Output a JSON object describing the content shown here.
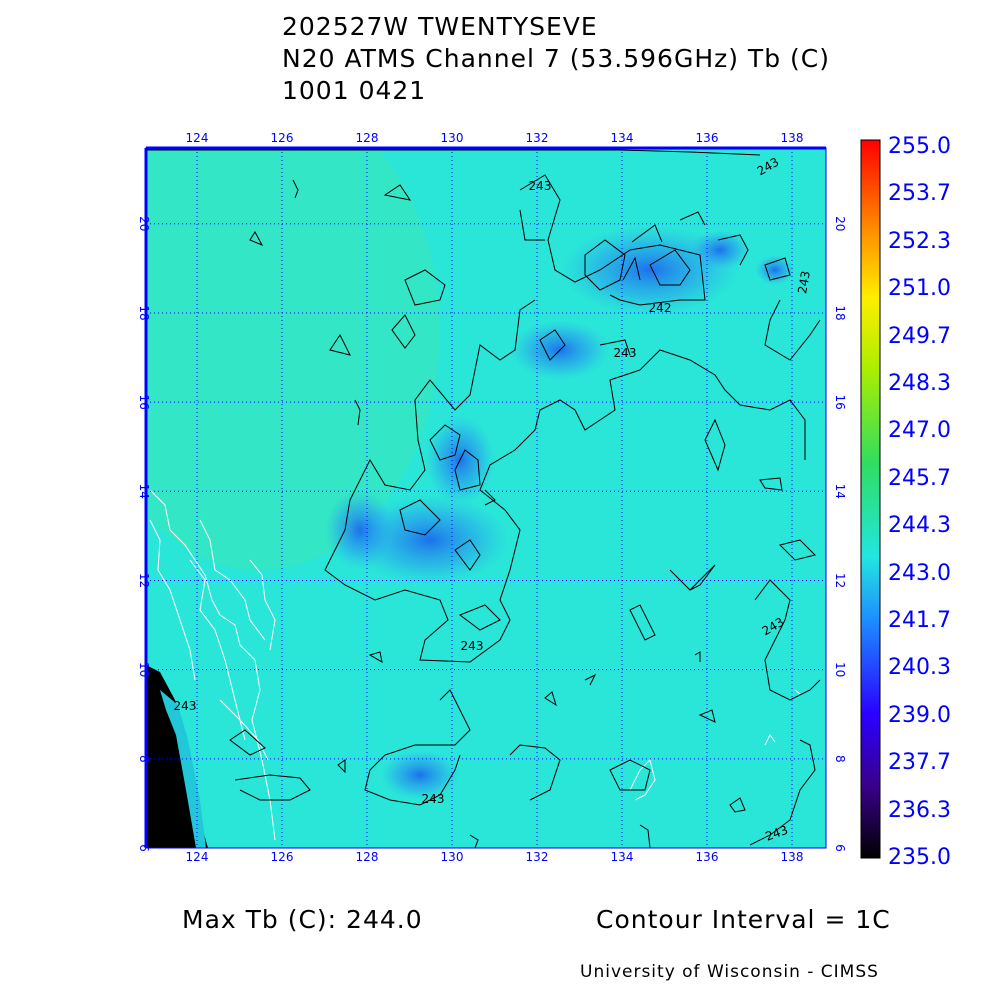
{
  "header": {
    "storm": "202527W TWENTYSEVE",
    "product": "N20 ATMS Channel 7 (53.596GHz) Tb (C)",
    "datetime": "1001 0421"
  },
  "map": {
    "lon_labels": [
      "124",
      "126",
      "128",
      "130",
      "132",
      "134",
      "136",
      "138"
    ],
    "lat_labels": [
      "20",
      "18",
      "16",
      "14",
      "12",
      "10",
      "8",
      "6"
    ],
    "lon_range": [
      122.8,
      138.8
    ],
    "lat_range": [
      6,
      21.7
    ],
    "background_color": "#2ae6d8",
    "contour_labels": [
      "243",
      "243",
      "242",
      "243",
      "243",
      "243",
      "243",
      "243",
      "243",
      "243"
    ]
  },
  "colorbar": {
    "labels": [
      "255.0",
      "253.7",
      "252.3",
      "251.0",
      "249.7",
      "248.3",
      "247.0",
      "245.7",
      "244.3",
      "243.0",
      "241.7",
      "240.3",
      "239.0",
      "237.7",
      "236.3",
      "235.0"
    ],
    "range": [
      235.0,
      255.0
    ]
  },
  "footer": {
    "max_tb": "Max Tb (C): 244.0",
    "contour_interval": "Contour Interval = 1C",
    "credit": "University of Wisconsin - CIMSS"
  }
}
